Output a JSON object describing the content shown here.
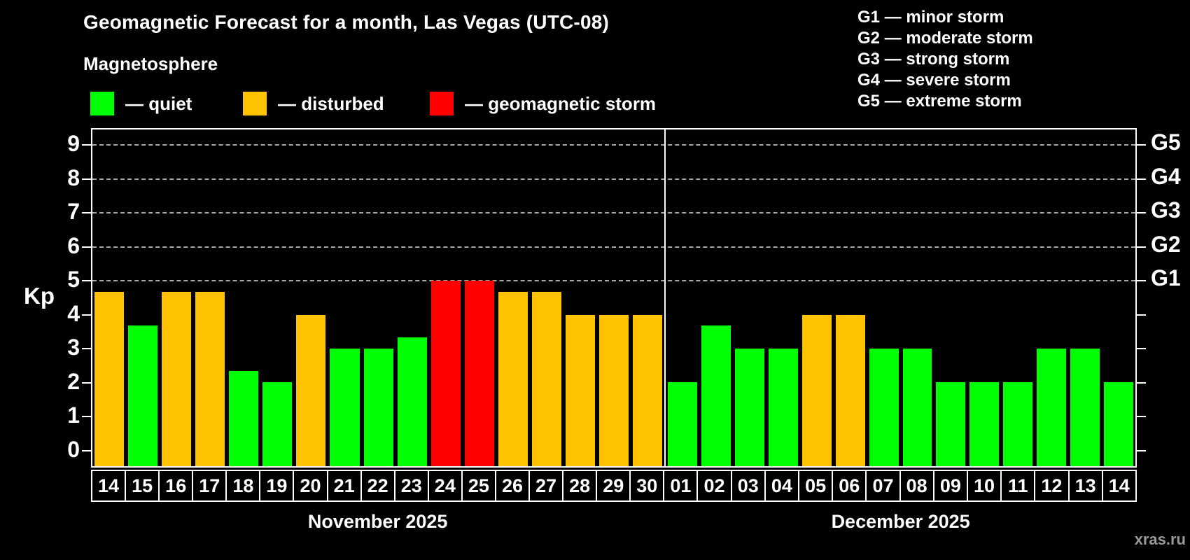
{
  "title": "Geomagnetic Forecast for a month, Las Vegas (UTC-08)",
  "subtitle": "Magnetosphere",
  "legend": {
    "items": [
      {
        "key": "quiet",
        "label": "— quiet",
        "color": "#00ff00"
      },
      {
        "key": "disturbed",
        "label": "— disturbed",
        "color": "#ffc200"
      },
      {
        "key": "storm",
        "label": "— geomagnetic storm",
        "color": "#ff0000"
      }
    ]
  },
  "g_scale_legend": {
    "lines": [
      "G1 — minor storm",
      "G2 — moderate storm",
      "G3 — strong storm",
      "G4 — severe storm",
      "G5 — extreme storm"
    ]
  },
  "watermark": "xras.ru",
  "chart_data": {
    "type": "bar",
    "title": "Geomagnetic Forecast for a month, Las Vegas (UTC-08)",
    "ylabel": "Kp",
    "ylim": [
      -0.5,
      9.5
    ],
    "yticks": [
      0,
      1,
      2,
      3,
      4,
      5,
      6,
      7,
      8,
      9
    ],
    "gridline_kp": [
      5,
      6,
      7,
      8,
      9
    ],
    "grid": "dashed, only at Kp 5-9",
    "legend_position": "top-left",
    "right_axis_labels": {
      "5": "G1",
      "6": "G2",
      "7": "G3",
      "8": "G4",
      "9": "G5"
    },
    "status_colors": {
      "quiet": "#00ff00",
      "disturbed": "#ffc200",
      "storm": "#ff0000"
    },
    "months": [
      {
        "label": "November 2025",
        "days": [
          {
            "day": "14",
            "kp": 4.67,
            "status": "disturbed"
          },
          {
            "day": "15",
            "kp": 3.67,
            "status": "quiet"
          },
          {
            "day": "16",
            "kp": 4.67,
            "status": "disturbed"
          },
          {
            "day": "17",
            "kp": 4.67,
            "status": "disturbed"
          },
          {
            "day": "18",
            "kp": 2.33,
            "status": "quiet"
          },
          {
            "day": "19",
            "kp": 2.0,
            "status": "quiet"
          },
          {
            "day": "20",
            "kp": 4.0,
            "status": "disturbed"
          },
          {
            "day": "21",
            "kp": 3.0,
            "status": "quiet"
          },
          {
            "day": "22",
            "kp": 3.0,
            "status": "quiet"
          },
          {
            "day": "23",
            "kp": 3.33,
            "status": "quiet"
          },
          {
            "day": "24",
            "kp": 5.0,
            "status": "storm"
          },
          {
            "day": "25",
            "kp": 5.0,
            "status": "storm"
          },
          {
            "day": "26",
            "kp": 4.67,
            "status": "disturbed"
          },
          {
            "day": "27",
            "kp": 4.67,
            "status": "disturbed"
          },
          {
            "day": "28",
            "kp": 4.0,
            "status": "disturbed"
          },
          {
            "day": "29",
            "kp": 4.0,
            "status": "disturbed"
          },
          {
            "day": "30",
            "kp": 4.0,
            "status": "disturbed"
          }
        ]
      },
      {
        "label": "December 2025",
        "days": [
          {
            "day": "01",
            "kp": 2.0,
            "status": "quiet"
          },
          {
            "day": "02",
            "kp": 3.67,
            "status": "quiet"
          },
          {
            "day": "03",
            "kp": 3.0,
            "status": "quiet"
          },
          {
            "day": "04",
            "kp": 3.0,
            "status": "quiet"
          },
          {
            "day": "05",
            "kp": 4.0,
            "status": "disturbed"
          },
          {
            "day": "06",
            "kp": 4.0,
            "status": "disturbed"
          },
          {
            "day": "07",
            "kp": 3.0,
            "status": "quiet"
          },
          {
            "day": "08",
            "kp": 3.0,
            "status": "quiet"
          },
          {
            "day": "09",
            "kp": 2.0,
            "status": "quiet"
          },
          {
            "day": "10",
            "kp": 2.0,
            "status": "quiet"
          },
          {
            "day": "11",
            "kp": 2.0,
            "status": "quiet"
          },
          {
            "day": "12",
            "kp": 3.0,
            "status": "quiet"
          },
          {
            "day": "13",
            "kp": 3.0,
            "status": "quiet"
          },
          {
            "day": "14",
            "kp": 2.0,
            "status": "quiet"
          }
        ]
      }
    ]
  }
}
